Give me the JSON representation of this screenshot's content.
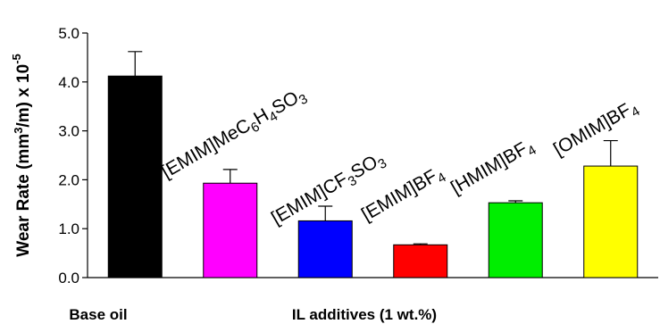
{
  "chart_data": {
    "type": "bar",
    "ylabel": {
      "prefix": "Wear Rate (mm",
      "sup": "3",
      "middle": "/m) x 10",
      "exp": "-5"
    },
    "ylim": [
      0,
      5
    ],
    "yticks": [
      "0.0",
      "1.0",
      "2.0",
      "3.0",
      "4.0",
      "5.0"
    ],
    "grid": false,
    "categories": [
      {
        "parts": [
          {
            "t": "Base oil",
            "sub": false
          }
        ]
      },
      {
        "parts": [
          {
            "t": "[EMIM]MeC",
            "sub": false
          },
          {
            "t": "6",
            "sub": true
          },
          {
            "t": "H",
            "sub": false
          },
          {
            "t": "4",
            "sub": true
          },
          {
            "t": "SO",
            "sub": false
          },
          {
            "t": "3",
            "sub": true
          }
        ]
      },
      {
        "parts": [
          {
            "t": "[EMIM]CF",
            "sub": false
          },
          {
            "t": "3",
            "sub": true
          },
          {
            "t": "SO",
            "sub": false
          },
          {
            "t": "3",
            "sub": true
          }
        ]
      },
      {
        "parts": [
          {
            "t": "[EMIM]BF",
            "sub": false
          },
          {
            "t": "4",
            "sub": true
          }
        ]
      },
      {
        "parts": [
          {
            "t": "[HMIM]BF",
            "sub": false
          },
          {
            "t": "4",
            "sub": true
          }
        ]
      },
      {
        "parts": [
          {
            "t": "[OMIM]BF",
            "sub": false
          },
          {
            "t": "4",
            "sub": true
          }
        ]
      }
    ],
    "values": [
      4.12,
      1.93,
      1.16,
      0.67,
      1.53,
      2.28
    ],
    "errors": [
      0.5,
      0.28,
      0.3,
      0.02,
      0.04,
      0.52
    ],
    "colors": [
      "#000000",
      "#ff00ff",
      "#0000ff",
      "#ff0000",
      "#00ee00",
      "#ffff00"
    ],
    "group_labels": [
      "Base oil",
      "IL additives (1 wt.%)"
    ]
  }
}
